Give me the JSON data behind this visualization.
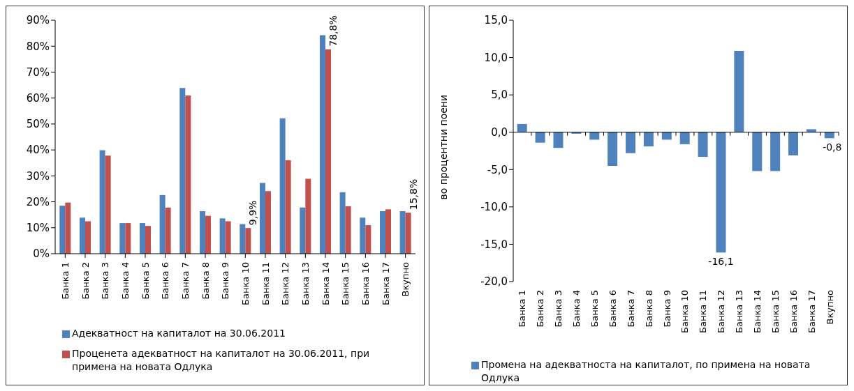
{
  "chart_data": [
    {
      "type": "bar",
      "categories": [
        "Банка 1",
        "Банка 2",
        "Банка 3",
        "Банка 4",
        "Банка 5",
        "Банка 6",
        "Банка 7",
        "Банка 8",
        "Банка 9",
        "Банка 10",
        "Банка 11",
        "Банка 12",
        "Банка 13",
        "Банка 14",
        "Банка 15",
        "Банка 16",
        "Банка 17",
        "Вкупно"
      ],
      "series": [
        {
          "name": "Адекватност на капиталот на 30.06.2011",
          "color": "#4f81bd",
          "values": [
            18.5,
            13.9,
            39.9,
            11.8,
            11.8,
            22.6,
            63.9,
            16.4,
            13.6,
            11.4,
            27.3,
            52.2,
            17.8,
            84.2,
            23.7,
            13.9,
            16.4,
            16.4
          ]
        },
        {
          "name": "Проценета адекватност на капиталот на 30.06.2011, при примена на новата Одлука",
          "color": "#c0504d",
          "values": [
            19.7,
            12.5,
            37.8,
            11.8,
            10.7,
            17.8,
            61.0,
            14.6,
            12.5,
            9.9,
            24.1,
            36.0,
            28.9,
            78.8,
            18.3,
            11.0,
            17.1,
            15.8
          ],
          "value_labels": [
            null,
            null,
            null,
            null,
            null,
            null,
            null,
            null,
            null,
            "9,9%",
            null,
            null,
            null,
            "78,8%",
            null,
            null,
            null,
            "15,8%"
          ]
        }
      ],
      "ylim": [
        0,
        90
      ],
      "yticks": [
        {
          "value": 0,
          "label": "0%"
        },
        {
          "value": 10,
          "label": "10%"
        },
        {
          "value": 20,
          "label": "20%"
        },
        {
          "value": 30,
          "label": "30%"
        },
        {
          "value": 40,
          "label": "40%"
        },
        {
          "value": 50,
          "label": "50%"
        },
        {
          "value": 60,
          "label": "60%"
        },
        {
          "value": 70,
          "label": "70%"
        },
        {
          "value": 80,
          "label": "80%"
        },
        {
          "value": 90,
          "label": "90%"
        }
      ],
      "grid": false,
      "legend": "bottom"
    },
    {
      "type": "bar",
      "categories": [
        "Банка 1",
        "Банка 2",
        "Банка 3",
        "Банка 4",
        "Банка 5",
        "Банка 6",
        "Банка 7",
        "Банка 8",
        "Банка 9",
        "Банка 10",
        "Банка 11",
        "Банка 12",
        "Банка 13",
        "Банка 14",
        "Банка 15",
        "Банка 16",
        "Банка 17",
        "Вкупно"
      ],
      "ylabel": "во процентни  поени",
      "series": [
        {
          "name": "Промена на адекватноста на капиталот, по примена на новата Одлука",
          "color": "#4f81bd",
          "values": [
            1.1,
            -1.4,
            -2.1,
            -0.2,
            -1.0,
            -4.5,
            -2.8,
            -1.9,
            -1.0,
            -1.6,
            -3.3,
            -16.1,
            10.9,
            -5.2,
            -5.2,
            -3.1,
            0.4,
            -0.8
          ],
          "value_labels": [
            null,
            null,
            null,
            null,
            null,
            null,
            null,
            null,
            null,
            null,
            null,
            "-16,1",
            null,
            null,
            null,
            null,
            null,
            "-0,8"
          ]
        }
      ],
      "ylim": [
        -20,
        15
      ],
      "yticks": [
        {
          "value": -20,
          "label": "-20,0"
        },
        {
          "value": -15,
          "label": "-15,0"
        },
        {
          "value": -10,
          "label": "-10,0"
        },
        {
          "value": -5,
          "label": "-5,0"
        },
        {
          "value": 0,
          "label": "0,0"
        },
        {
          "value": 5,
          "label": "5,0"
        },
        {
          "value": 10,
          "label": "10,0"
        },
        {
          "value": 15,
          "label": "15,0"
        }
      ],
      "ref_lines": [
        {
          "axis": "y",
          "value": 0,
          "color": "#000000"
        }
      ],
      "grid": false,
      "legend": "bottom"
    }
  ]
}
